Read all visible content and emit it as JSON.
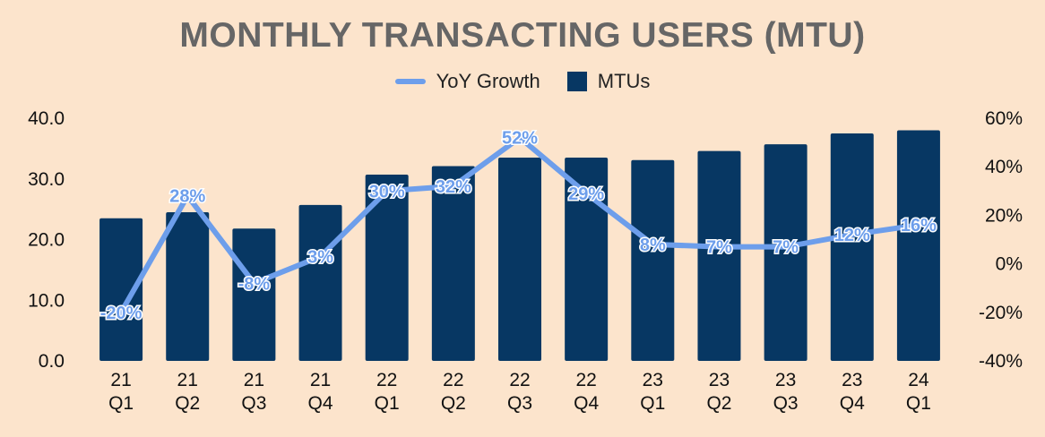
{
  "chart_data": {
    "type": "bar",
    "title": "MONTHLY TRANSACTING USERS (MTU)",
    "categories": [
      [
        "21",
        "Q1"
      ],
      [
        "21",
        "Q2"
      ],
      [
        "21",
        "Q3"
      ],
      [
        "21",
        "Q4"
      ],
      [
        "22",
        "Q1"
      ],
      [
        "22",
        "Q2"
      ],
      [
        "22",
        "Q3"
      ],
      [
        "22",
        "Q4"
      ],
      [
        "23",
        "Q1"
      ],
      [
        "23",
        "Q2"
      ],
      [
        "23",
        "Q3"
      ],
      [
        "23",
        "Q4"
      ],
      [
        "24",
        "Q1"
      ]
    ],
    "series": [
      {
        "name": "MTUs",
        "type": "bar",
        "axis": "left",
        "values": [
          23.5,
          24.5,
          21.8,
          25.7,
          30.7,
          32.1,
          33.5,
          33.5,
          33.1,
          34.6,
          35.7,
          37.5,
          38.0
        ]
      },
      {
        "name": "YoY Growth",
        "type": "line",
        "axis": "right",
        "values": [
          -20,
          28,
          -8,
          3,
          30,
          32,
          52,
          29,
          8,
          7,
          7,
          12,
          16
        ],
        "labels": [
          "-20%",
          "28%",
          "-8%",
          "3%",
          "30%",
          "32%",
          "52%",
          "29%",
          "8%",
          "7%",
          "7%",
          "12%",
          "16%"
        ]
      }
    ],
    "y_left": {
      "min": 0,
      "max": 40,
      "ticks": [
        0,
        10,
        20,
        30,
        40
      ],
      "tick_labels": [
        "0.0",
        "10.0",
        "20.0",
        "30.0",
        "40.0"
      ]
    },
    "y_right": {
      "min": -40,
      "max": 60,
      "ticks": [
        -40,
        -20,
        0,
        20,
        40,
        60
      ],
      "tick_labels": [
        "-40%",
        "-20%",
        "0%",
        "20%",
        "40%",
        "60%"
      ]
    },
    "legend": {
      "position": "top-center",
      "items": [
        {
          "label": "YoY Growth",
          "kind": "line"
        },
        {
          "label": "MTUs",
          "kind": "bar"
        }
      ]
    },
    "grid": false,
    "colors": {
      "bar": "#073763",
      "line": "#6d9eeb",
      "background": "#fce4cc",
      "title": "#666666"
    }
  }
}
